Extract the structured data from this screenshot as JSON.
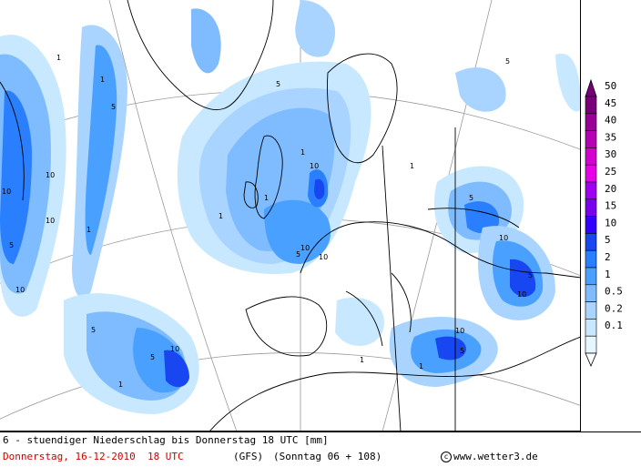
{
  "map": {
    "contour_labels": [
      "1",
      "1",
      "1",
      "1",
      "1",
      "1",
      "1",
      "1",
      "1",
      "1",
      "5",
      "5",
      "5",
      "5",
      "5",
      "5",
      "5",
      "5",
      "5",
      "5",
      "10",
      "10",
      "10",
      "10",
      "10",
      "10",
      "10",
      "10",
      "10",
      "10",
      "10"
    ]
  },
  "legend": {
    "levels": [
      {
        "value": "50",
        "color": "#7a007a"
      },
      {
        "value": "45",
        "color": "#9a0096"
      },
      {
        "value": "40",
        "color": "#b800b4"
      },
      {
        "value": "35",
        "color": "#d400d0"
      },
      {
        "value": "30",
        "color": "#e800e8"
      },
      {
        "value": "25",
        "color": "#a000f0"
      },
      {
        "value": "20",
        "color": "#7a00f0"
      },
      {
        "value": "15",
        "color": "#3300ff"
      },
      {
        "value": "10",
        "color": "#1846f0"
      },
      {
        "value": "5",
        "color": "#2a7fff"
      },
      {
        "value": "2",
        "color": "#4aa0ff"
      },
      {
        "value": "1",
        "color": "#7fbcff"
      },
      {
        "value": "0.5",
        "color": "#a8d4ff"
      },
      {
        "value": "0.2",
        "color": "#c8e8ff"
      },
      {
        "value": "0.1",
        "color": "#e6f6ff"
      }
    ]
  },
  "footer": {
    "caption": "6 - stuendiger Niederschlag bis Donnerstag 18 UTC [mm]",
    "date": "Donnerstag, 16-12-2010  18 UTC",
    "model": "(GFS)",
    "run": "(Sonntag 06 + 108)",
    "copyright": "www.wetter3.de"
  }
}
